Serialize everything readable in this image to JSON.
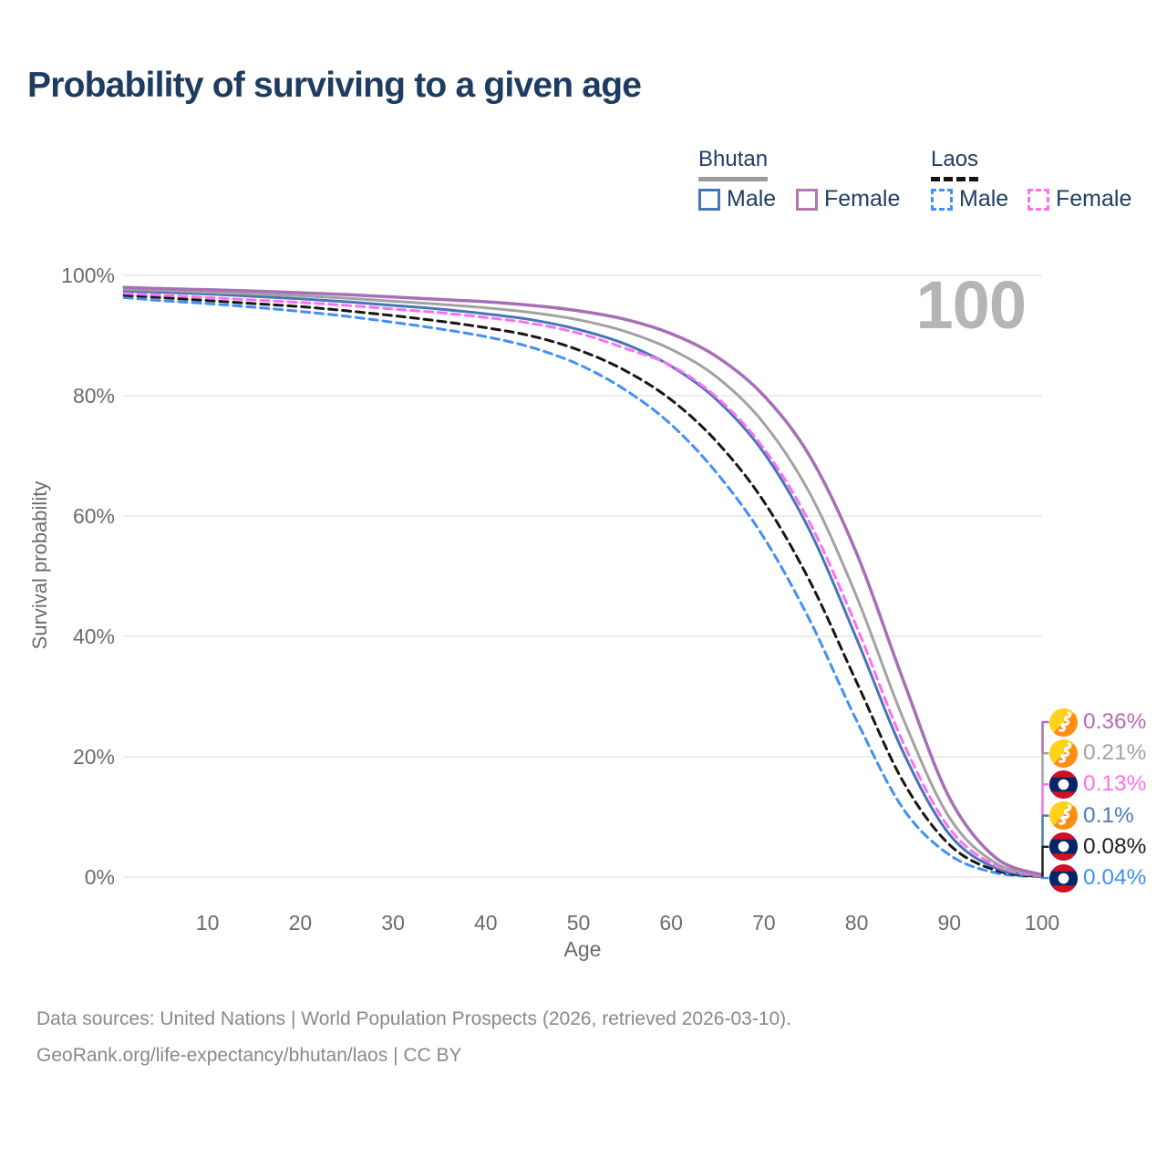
{
  "title": "Probability of surviving to a given age",
  "watermark": "100",
  "legend": {
    "groups": [
      {
        "name": "Bhutan",
        "line_style": "solid",
        "underline_color": "#9a9a9a",
        "items": [
          {
            "label": "Male",
            "color": "#4576b5",
            "dashed": false
          },
          {
            "label": "Female",
            "color": "#b377b3",
            "dashed": false
          }
        ]
      },
      {
        "name": "Laos",
        "line_style": "dashed",
        "underline_color": "#141414",
        "items": [
          {
            "label": "Male",
            "color": "#4290f5",
            "dashed": true
          },
          {
            "label": "Female",
            "color": "#fb70f0",
            "dashed": true
          }
        ]
      }
    ]
  },
  "chart_data": {
    "type": "line",
    "title": "Probability of surviving to a given age",
    "xlabel": "Age",
    "ylabel": "Survival probability",
    "xlim": [
      0,
      100
    ],
    "ylim": [
      0,
      100
    ],
    "grid": "horizontal-only",
    "legend_position": "top-right",
    "xticks": [
      "10",
      "20",
      "30",
      "40",
      "50",
      "60",
      "70",
      "80",
      "90",
      "100"
    ],
    "xtick_values": [
      10,
      20,
      30,
      40,
      50,
      60,
      70,
      80,
      90,
      100
    ],
    "yticks": [
      "100%",
      "80%",
      "60%",
      "40%",
      "20%",
      "0%"
    ],
    "ytick_values": [
      100,
      80,
      60,
      40,
      20,
      0
    ],
    "x": [
      1,
      5,
      10,
      15,
      20,
      25,
      30,
      35,
      40,
      45,
      50,
      55,
      60,
      65,
      70,
      75,
      80,
      85,
      90,
      95,
      100
    ],
    "series": [
      {
        "id": "laos-male",
        "name": "Laos Male",
        "color": "#4290f5",
        "dash": [
          9,
          6
        ],
        "width": 3,
        "values": [
          96.3,
          95.8,
          95.3,
          94.7,
          94.0,
          93.2,
          92.2,
          91.1,
          89.8,
          88.0,
          85.2,
          81.0,
          75.2,
          67.0,
          56.4,
          42.5,
          26.0,
          11.4,
          3.7,
          0.7,
          0.04
        ]
      },
      {
        "id": "laos-all",
        "name": "Laos",
        "color": "#161616",
        "dash": [
          9,
          6
        ],
        "width": 3,
        "values": [
          96.7,
          96.3,
          95.8,
          95.3,
          94.8,
          94.1,
          93.3,
          92.4,
          91.3,
          89.9,
          87.6,
          84.2,
          79.3,
          72.2,
          62.4,
          49.0,
          32.4,
          15.9,
          5.4,
          1.1,
          0.08
        ]
      },
      {
        "id": "bhutan-male",
        "name": "Bhutan Male",
        "color": "#4576b5",
        "dash": null,
        "width": 3,
        "values": [
          97.4,
          97.2,
          96.9,
          96.5,
          96.1,
          95.6,
          95.0,
          94.4,
          93.6,
          92.6,
          91.0,
          88.6,
          84.9,
          79.2,
          70.5,
          57.4,
          39.6,
          20.8,
          7.1,
          1.5,
          0.1
        ]
      },
      {
        "id": "laos-female",
        "name": "Laos Female",
        "color": "#fb70f0",
        "dash": [
          9,
          6
        ],
        "width": 3,
        "values": [
          97.0,
          96.7,
          96.3,
          95.9,
          95.5,
          95.0,
          94.4,
          93.8,
          93.0,
          92.0,
          90.4,
          87.9,
          85.0,
          79.6,
          71.2,
          58.7,
          41.6,
          22.4,
          8.1,
          1.9,
          0.13
        ]
      },
      {
        "id": "bhutan-all",
        "name": "Bhutan",
        "color": "#a2a2a2",
        "dash": null,
        "width": 3,
        "values": [
          97.7,
          97.5,
          97.2,
          96.9,
          96.6,
          96.2,
          95.7,
          95.2,
          94.6,
          93.8,
          92.6,
          90.7,
          87.7,
          83.0,
          75.4,
          63.6,
          46.6,
          26.4,
          9.9,
          2.3,
          0.21
        ]
      },
      {
        "id": "bhutan-female",
        "name": "Bhutan Female",
        "color": "#a76fb5",
        "dash": null,
        "width": 3.5,
        "values": [
          98.0,
          97.8,
          97.6,
          97.4,
          97.1,
          96.8,
          96.4,
          96.0,
          95.6,
          95.0,
          94.1,
          92.7,
          90.3,
          86.4,
          80.0,
          69.8,
          53.8,
          32.8,
          13.2,
          3.2,
          0.36
        ]
      }
    ],
    "end_labels": [
      {
        "value": "0.36%",
        "color": "#b26ab8",
        "flag": "bhutan",
        "series": "bhutan-female"
      },
      {
        "value": "0.21%",
        "color": "#a2a2a2",
        "flag": "bhutan",
        "series": "bhutan-all"
      },
      {
        "value": "0.13%",
        "color": "#fb70f0",
        "flag": "laos",
        "series": "laos-female"
      },
      {
        "value": "0.1%",
        "color": "#4b79bd",
        "flag": "bhutan",
        "series": "bhutan-male"
      },
      {
        "value": "0.08%",
        "color": "#222222",
        "flag": "laos",
        "series": "laos-all"
      },
      {
        "value": "0.04%",
        "color": "#4290f5",
        "flag": "laos",
        "series": "laos-male"
      }
    ]
  },
  "colors": {
    "title": "#1e3c61",
    "axis_text": "#6b6b6b",
    "gridline": "#ededed",
    "watermark": "#b5b5b5",
    "footer": "#898989",
    "bhutan_flag_yellow": "#ffd21c",
    "bhutan_flag_orange": "#ff8d12",
    "laos_flag_red": "#ce1126",
    "laos_flag_blue": "#002868"
  },
  "footer": {
    "line1": "Data sources: United Nations | World Population Prospects (2026, retrieved 2026-03-10).",
    "line2": "GeoRank.org/life-expectancy/bhutan/laos | CC BY"
  }
}
